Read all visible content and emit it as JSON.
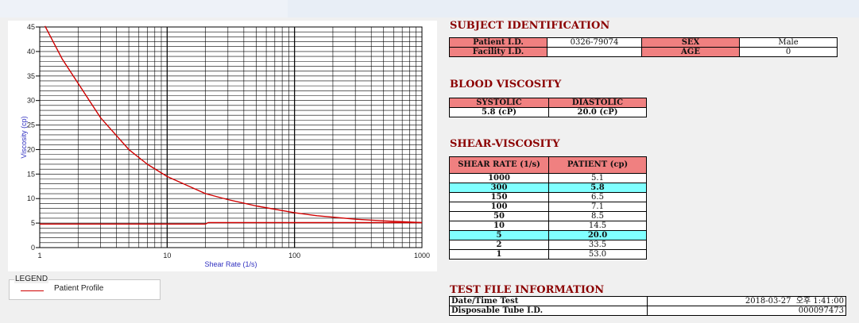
{
  "chart_data": {
    "type": "line",
    "xscale": "log",
    "xlim": [
      1,
      1000
    ],
    "ylim": [
      0,
      45
    ],
    "xlabel": "Shear Rate (1/s)",
    "ylabel": "Viscosity (cp)",
    "x_ticks": [
      "1",
      "10",
      "100",
      "1000"
    ],
    "y_ticks": [
      "0",
      "5",
      "10",
      "15",
      "20",
      "25",
      "30",
      "35",
      "40",
      "45"
    ],
    "grid": true,
    "series": [
      {
        "name": "Patient Profile",
        "color": "#d00000",
        "x": [
          1.1,
          1.5,
          2,
          3,
          5,
          7,
          10,
          20,
          30,
          50,
          100,
          150,
          300,
          500,
          1000
        ],
        "y": [
          45.2,
          38.5,
          33.5,
          26.5,
          20.0,
          17.0,
          14.5,
          11.0,
          9.8,
          8.5,
          7.1,
          6.5,
          5.8,
          5.45,
          5.1
        ]
      },
      {
        "name": "",
        "color": "#d00000",
        "x": [
          1,
          20,
          21,
          1000
        ],
        "y": [
          4.8,
          4.8,
          5.1,
          5.1
        ]
      }
    ]
  },
  "legend": {
    "title": "LEGEND",
    "label": "Patient Profile",
    "color": "#d00000"
  },
  "subject": {
    "title": "SUBJECT IDENTIFICATION",
    "patient_id_label": "Patient I.D.",
    "patient_id": "0326-79074",
    "sex_label": "SEX",
    "sex": "Male",
    "facility_id_label": "Facility I.D.",
    "facility_id": "",
    "age_label": "AGE",
    "age": "0"
  },
  "blood": {
    "title": "BLOOD VISCOSITY",
    "systolic_label": "SYSTOLIC",
    "diastolic_label": "DIASTOLIC",
    "systolic": "5.8 (cP)",
    "diastolic": "20.0 (cP)"
  },
  "shear": {
    "title": "SHEAR-VISCOSITY",
    "col_rate": "SHEAR RATE (1/s)",
    "col_patient": "PATIENT (cp)",
    "rows": [
      {
        "rate": "1000",
        "value": "5.1"
      },
      {
        "rate": "300",
        "value": "5.8"
      },
      {
        "rate": "150",
        "value": "6.5"
      },
      {
        "rate": "100",
        "value": "7.1"
      },
      {
        "rate": "50",
        "value": "8.5"
      },
      {
        "rate": "10",
        "value": "14.5"
      },
      {
        "rate": "5",
        "value": "20.0"
      },
      {
        "rate": "2",
        "value": "33.5"
      },
      {
        "rate": "1",
        "value": "53.0"
      }
    ]
  },
  "test_file": {
    "title": "TEST FILE INFORMATION",
    "datetime_label": "Date/Time Test",
    "datetime": "2018-03-27  오후 1:41:00",
    "tube_label": "Disposable Tube I.D.",
    "tube": "000097473"
  },
  "colors": {
    "header": "#f08080",
    "highlight": "#80ffff",
    "title": "#8b0000"
  }
}
